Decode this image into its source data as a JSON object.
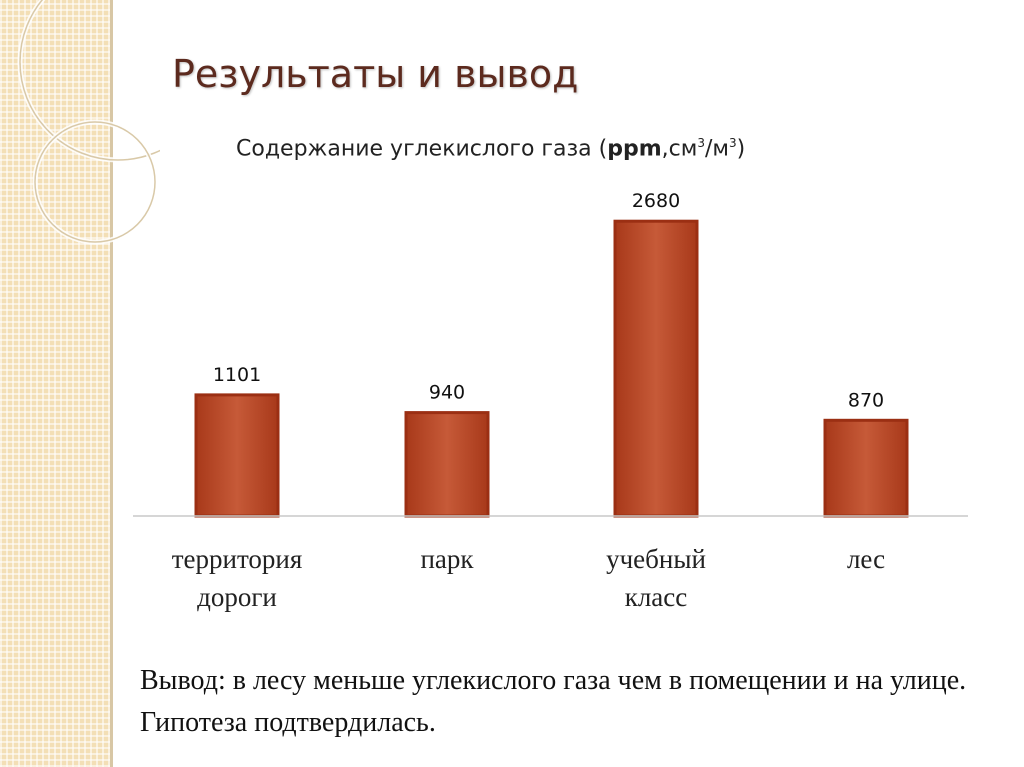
{
  "slide_title": "Результаты и вывод",
  "chart_title": {
    "prefix": "Содержание углекислого газа  (",
    "unit_ppm": "ppm",
    "unit_rest_1": ",см",
    "sup_1": "3",
    "unit_rest_2": "/м",
    "sup_2": "3",
    "suffix": ")"
  },
  "conclusion_text": "Вывод: в лесу меньше углекислого газа чем в помещении и на улице. Гипотеза подтвердилась.",
  "colors": {
    "bar_fill": "#c0502f",
    "bar_edge": "#9b2f13",
    "strip": "#f3dfb6",
    "title": "#5c2a1e"
  },
  "chart_data": {
    "type": "bar",
    "title": "Содержание углекислого газа (ppm,см3/м3)",
    "categories": [
      [
        "территория",
        "дороги"
      ],
      [
        "парк"
      ],
      [
        "учебный",
        "класс"
      ],
      [
        "лес"
      ]
    ],
    "values": [
      1101,
      940,
      2680,
      870
    ],
    "data_labels": [
      "1101",
      "940",
      "2680",
      "870"
    ],
    "ylim": [
      0,
      3000
    ],
    "grid": false,
    "legend": "none"
  }
}
